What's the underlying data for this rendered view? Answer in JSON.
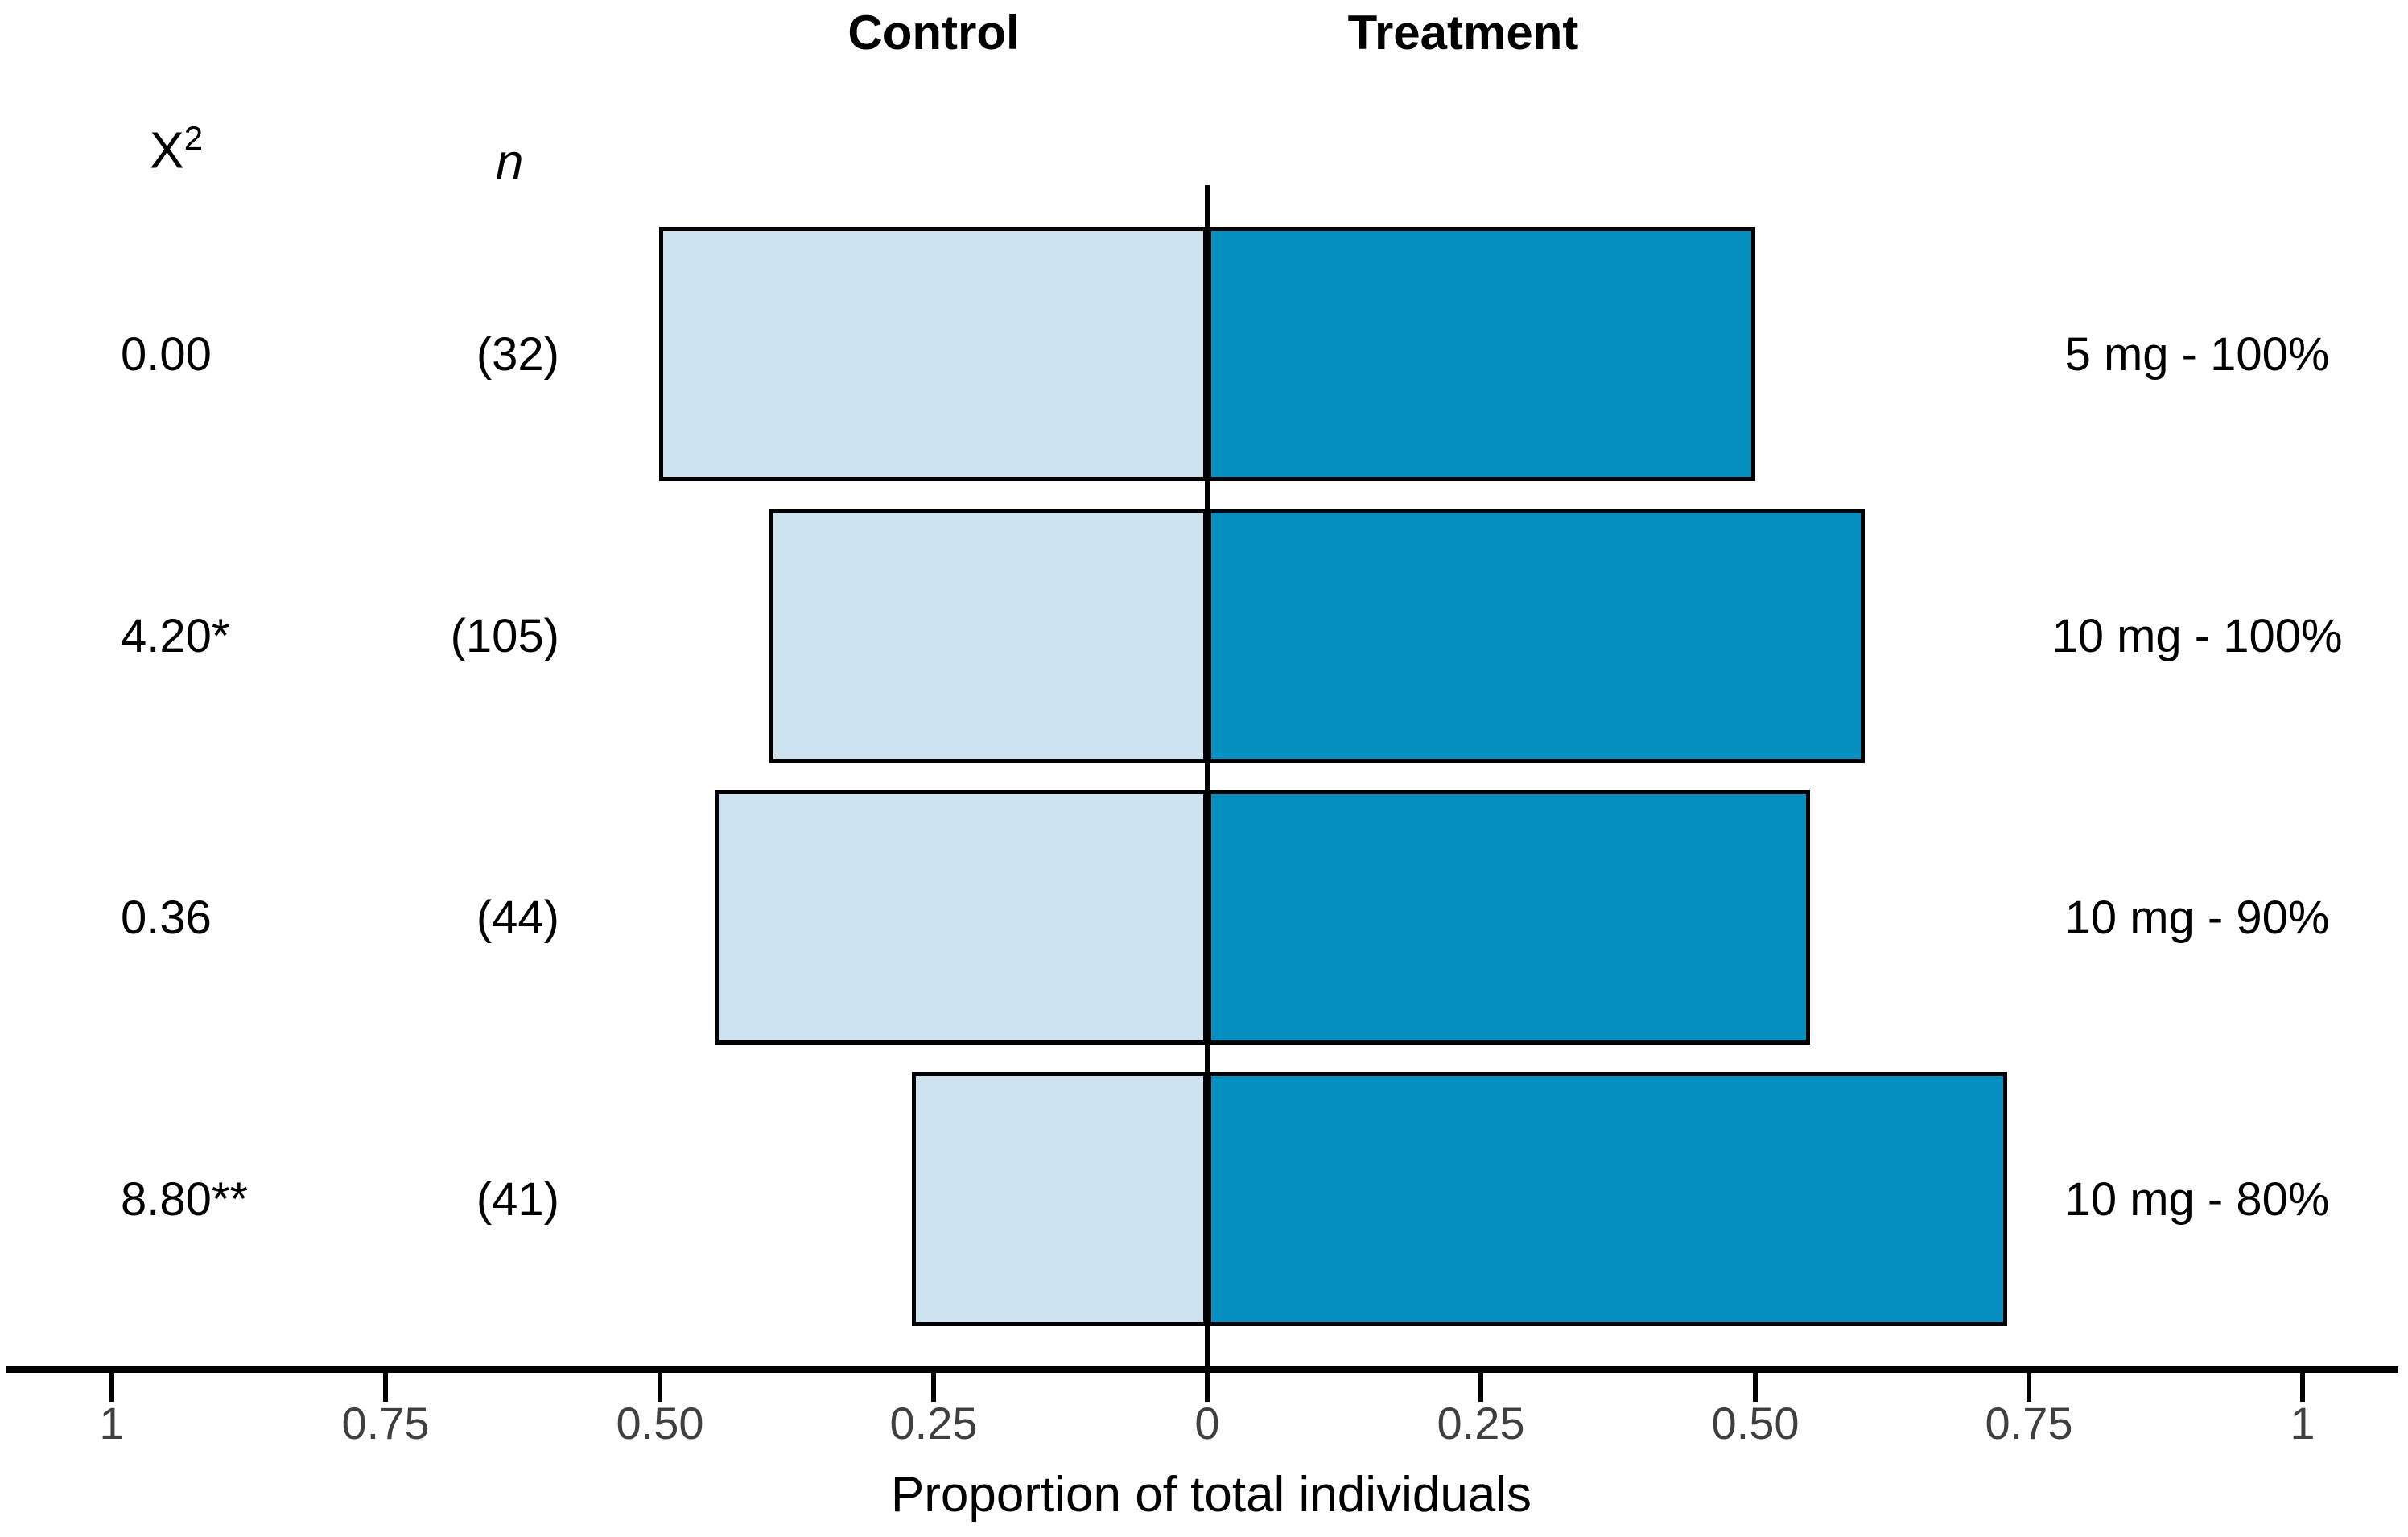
{
  "chart_data": {
    "type": "bar",
    "variant": "diverging-butterfly",
    "group_titles": {
      "left": "Control",
      "right": "Treatment"
    },
    "col_headers": {
      "chi_sq_base": "X",
      "chi_sq_sup": "2",
      "n": "n"
    },
    "categories": [
      "5 mg - 100%",
      "10 mg - 100%",
      "10 mg - 90%",
      "10 mg - 80%"
    ],
    "rows": [
      {
        "chi_sq": "0.00",
        "n": "(32)",
        "control": 0.5,
        "treatment": 0.5,
        "label": "5 mg - 100%"
      },
      {
        "chi_sq": "4.20*",
        "n": "(105)",
        "control": 0.4,
        "treatment": 0.6,
        "label": "10 mg - 100%"
      },
      {
        "chi_sq": "0.36",
        "n": "(44)",
        "control": 0.45,
        "treatment": 0.55,
        "label": "10 mg - 90%"
      },
      {
        "chi_sq": "8.80**",
        "n": "(41)",
        "control": 0.27,
        "treatment": 0.73,
        "label": "10 mg - 80%"
      }
    ],
    "series": [
      {
        "name": "Control",
        "values": [
          0.5,
          0.4,
          0.45,
          0.27
        ]
      },
      {
        "name": "Treatment",
        "values": [
          0.5,
          0.6,
          0.55,
          0.73
        ]
      }
    ],
    "x_ticks": [
      {
        "value": -1,
        "label": "1"
      },
      {
        "value": -0.75,
        "label": "0.75"
      },
      {
        "value": -0.5,
        "label": "0.50"
      },
      {
        "value": -0.25,
        "label": "0.25"
      },
      {
        "value": 0,
        "label": "0"
      },
      {
        "value": 0.25,
        "label": "0.25"
      },
      {
        "value": 0.5,
        "label": "0.50"
      },
      {
        "value": 0.75,
        "label": "0.75"
      },
      {
        "value": 1,
        "label": "1"
      }
    ],
    "xlabel": "Proportion of total individuals",
    "xlim": [
      -1,
      1
    ],
    "grid": false,
    "legend_position": "top",
    "colors": {
      "control_fill": "#cde2ef",
      "treatment_fill": "#0590c1",
      "bar_border": "#000000",
      "axis_line": "#000000",
      "tick_label": "#3f3f3f",
      "text": "#000000",
      "background": "#ffffff"
    }
  }
}
